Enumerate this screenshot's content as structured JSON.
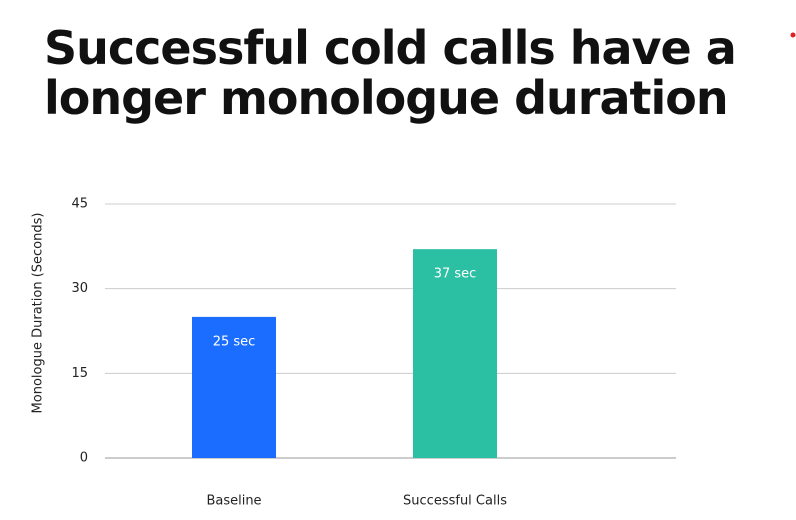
{
  "chart_data": {
    "type": "bar",
    "title": [
      "Successful cold calls have a",
      "longer monologue duration"
    ],
    "y_label": "Monologue Duration (Seconds)",
    "categories": [
      "Baseline",
      "Successful Calls"
    ],
    "values": [
      25,
      37
    ],
    "value_labels": [
      "25 sec",
      "37 sec"
    ],
    "colors": [
      "#1a6dff",
      "#2bbfa4"
    ],
    "ylim": [
      0,
      45
    ],
    "yticks": [
      0,
      15,
      30,
      45
    ],
    "grid": true
  }
}
